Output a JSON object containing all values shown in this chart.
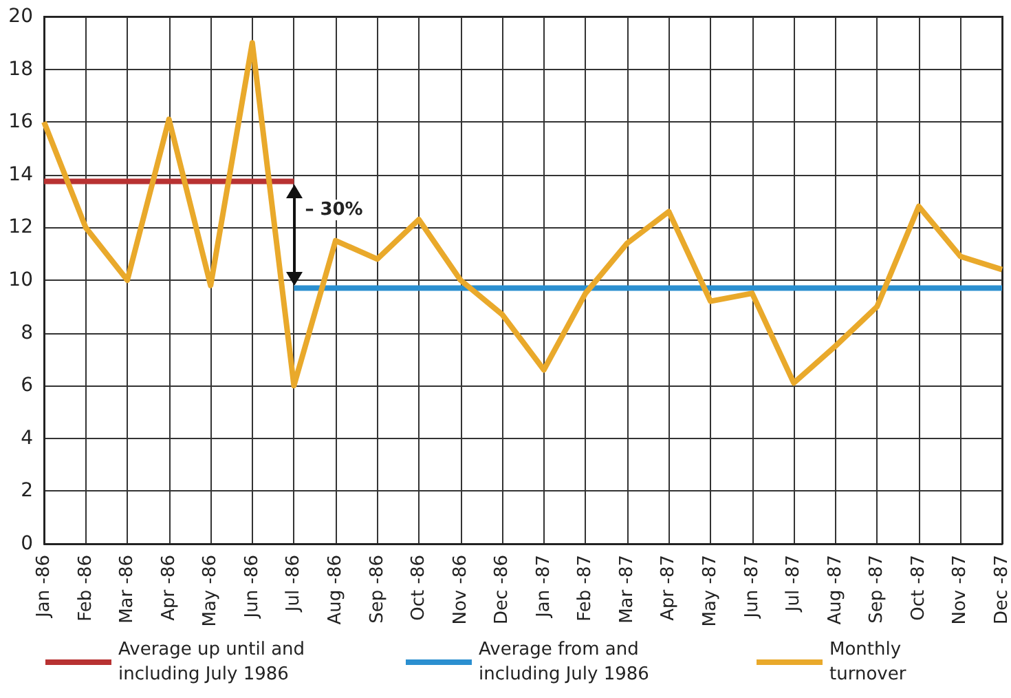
{
  "chart_data": {
    "type": "line",
    "categories": [
      "Jan -86",
      "Feb -86",
      "Mar -86",
      "Apr -86",
      "May -86",
      "Jun -86",
      "Jul -86",
      "Aug -86",
      "Sep -86",
      "Oct -86",
      "Nov -86",
      "Dec -86",
      "Jan -87",
      "Feb -87",
      "Mar -87",
      "Apr -87",
      "May -87",
      "Jun -87",
      "Jul -87",
      "Aug -87",
      "Sep -87",
      "Oct -87",
      "Nov -87",
      "Dec -87"
    ],
    "series": [
      {
        "name": "Average up until and including July 1986",
        "color": "#b83232",
        "values": [
          13.75,
          13.75,
          13.75,
          13.75,
          13.75,
          13.75,
          13.75,
          null,
          null,
          null,
          null,
          null,
          null,
          null,
          null,
          null,
          null,
          null,
          null,
          null,
          null,
          null,
          null,
          null
        ]
      },
      {
        "name": "Average from and including July 1986",
        "color": "#2b8fd0",
        "values": [
          null,
          null,
          null,
          null,
          null,
          null,
          9.7,
          9.7,
          9.7,
          9.7,
          9.7,
          9.7,
          9.7,
          9.7,
          9.7,
          9.7,
          9.7,
          9.7,
          9.7,
          9.7,
          9.7,
          9.7,
          9.7,
          9.7
        ]
      },
      {
        "name": "Monthly turnover",
        "color": "#e9a92b",
        "values": [
          16,
          12,
          10,
          16.1,
          9.8,
          19,
          6,
          11.5,
          10.8,
          12.3,
          10,
          8.7,
          6.6,
          9.5,
          11.4,
          12.6,
          9.2,
          9.5,
          6.1,
          7.5,
          9,
          12.8,
          10.9,
          10.4
        ]
      }
    ],
    "ylim": [
      0,
      20
    ],
    "yticks": [
      0,
      2,
      4,
      6,
      8,
      10,
      12,
      14,
      16,
      18,
      20
    ],
    "annotations": [
      "– 30%"
    ],
    "grid": true,
    "legend": "bottom",
    "marker": "none",
    "line_style": "solid"
  }
}
